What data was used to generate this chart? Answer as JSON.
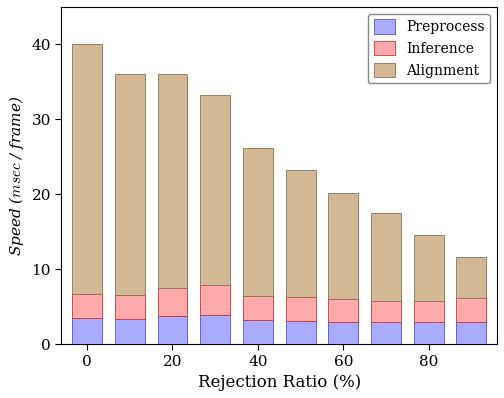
{
  "categories": [
    0,
    10,
    20,
    30,
    40,
    50,
    60,
    70,
    80,
    90
  ],
  "preprocess": [
    3.5,
    3.3,
    3.7,
    3.9,
    3.2,
    3.1,
    3.0,
    3.0,
    3.0,
    3.0
  ],
  "inference": [
    3.2,
    3.2,
    3.8,
    4.0,
    3.2,
    3.2,
    3.0,
    2.8,
    2.8,
    3.2
  ],
  "alignment": [
    33.3,
    29.5,
    28.5,
    25.4,
    19.8,
    17.0,
    14.2,
    11.7,
    8.7,
    5.4
  ],
  "preprocess_color": "#aaaaff",
  "inference_color": "#ffaaaa",
  "alignment_color": "#d4b896",
  "xlabel": "Rejection Ratio (%)",
  "ylabel": "Speed ($msec$ / frame)",
  "ylim": [
    0,
    45
  ],
  "yticks": [
    0,
    10,
    20,
    30,
    40
  ],
  "xtick_positions": [
    0,
    20,
    40,
    60,
    80
  ],
  "legend_labels": [
    "Preprocess",
    "Inference",
    "Alignment"
  ],
  "figsize": [
    5.04,
    3.98
  ],
  "dpi": 100
}
